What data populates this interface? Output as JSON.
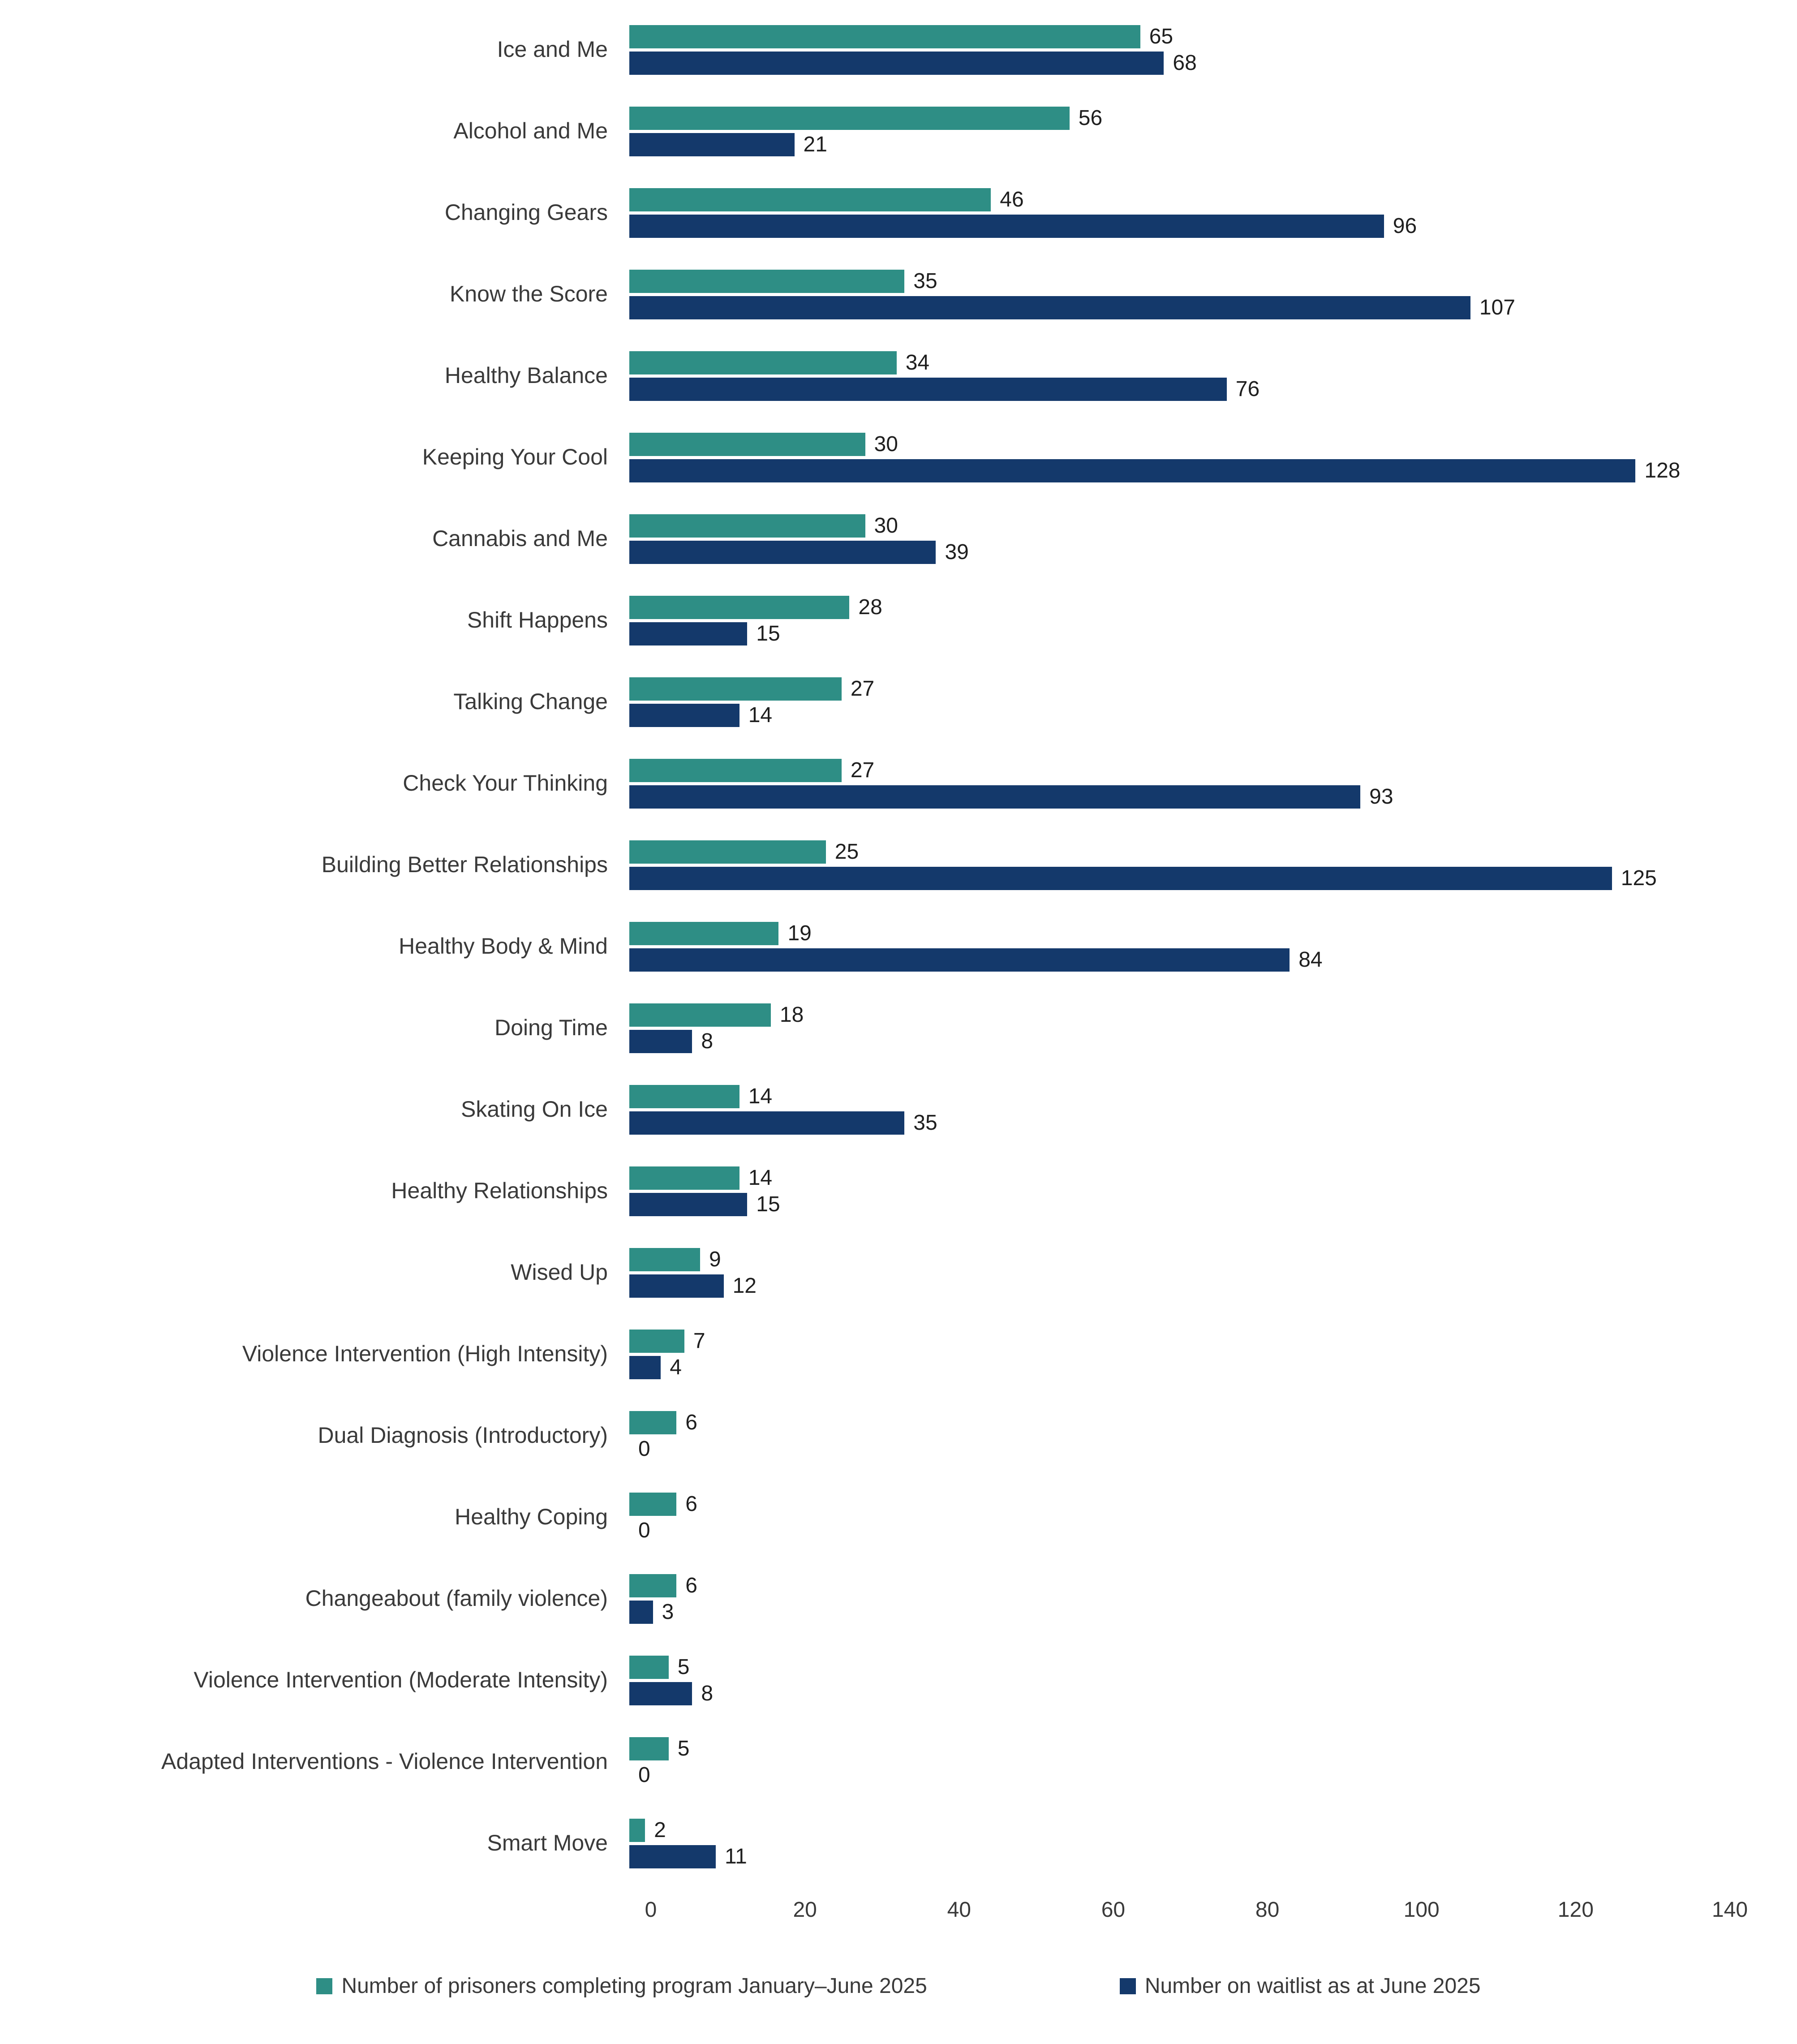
{
  "chart_data": {
    "type": "bar",
    "orientation": "horizontal",
    "title": "",
    "xlabel": "",
    "ylabel": "",
    "xlim": [
      0,
      140
    ],
    "xticks": [
      0,
      20,
      40,
      60,
      80,
      100,
      120,
      140
    ],
    "grid": false,
    "legend_position": "bottom",
    "categories": [
      "Ice and Me",
      "Alcohol and Me",
      "Changing Gears",
      "Know the Score",
      "Healthy Balance",
      "Keeping Your Cool",
      "Cannabis and Me",
      "Shift Happens",
      "Talking Change",
      "Check Your Thinking",
      "Building Better Relationships",
      "Healthy Body & Mind",
      "Doing Time",
      "Skating On Ice",
      "Healthy Relationships",
      "Wised Up",
      "Violence Intervention (High Intensity)",
      "Dual Diagnosis (Introductory)",
      "Healthy Coping",
      "Changeabout (family violence)",
      "Violence Intervention (Moderate Intensity)",
      "Adapted Interventions - Violence Intervention",
      "Smart Move"
    ],
    "series": [
      {
        "name": "Number of prisoners completing program January–June 2025",
        "color": "#2e8e85",
        "values": [
          65,
          56,
          46,
          35,
          34,
          30,
          30,
          28,
          27,
          27,
          25,
          19,
          18,
          14,
          14,
          9,
          7,
          6,
          6,
          6,
          5,
          5,
          2
        ]
      },
      {
        "name": "Number on waitlist as at June 2025",
        "color": "#14396b",
        "values": [
          68,
          21,
          96,
          107,
          76,
          128,
          39,
          15,
          14,
          93,
          125,
          84,
          8,
          35,
          15,
          12,
          4,
          0,
          0,
          3,
          8,
          0,
          11
        ]
      }
    ]
  }
}
